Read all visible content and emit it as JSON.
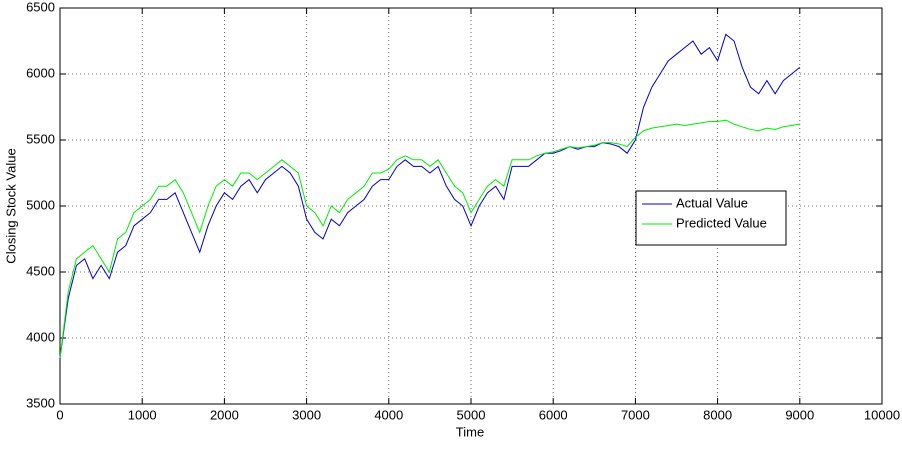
{
  "chart_data": {
    "type": "line",
    "xlabel": "Time",
    "ylabel": "Closing Stock Value",
    "x": [
      0,
      100,
      200,
      300,
      400,
      500,
      600,
      700,
      800,
      900,
      1000,
      1100,
      1200,
      1300,
      1400,
      1500,
      1600,
      1700,
      1800,
      1900,
      2000,
      2100,
      2200,
      2300,
      2400,
      2500,
      2600,
      2700,
      2800,
      2900,
      3000,
      3100,
      3200,
      3300,
      3400,
      3500,
      3600,
      3700,
      3800,
      3900,
      4000,
      4100,
      4200,
      4300,
      4400,
      4500,
      4600,
      4700,
      4800,
      4900,
      5000,
      5100,
      5200,
      5300,
      5400,
      5500,
      5600,
      5700,
      5800,
      5900,
      6000,
      6100,
      6200,
      6300,
      6400,
      6500,
      6600,
      6700,
      6800,
      6900,
      7000,
      7100,
      7200,
      7300,
      7400,
      7500,
      7600,
      7700,
      7800,
      7900,
      8000,
      8100,
      8200,
      8300,
      8400,
      8500,
      8600,
      8700,
      8800,
      8900,
      9000
    ],
    "series": [
      {
        "name": "Actual Value",
        "color": "#0000cc",
        "values": [
          3850,
          4300,
          4550,
          4600,
          4450,
          4550,
          4450,
          4650,
          4700,
          4850,
          4900,
          4950,
          5050,
          5050,
          5100,
          4950,
          4800,
          4650,
          4850,
          5000,
          5100,
          5050,
          5150,
          5200,
          5100,
          5200,
          5250,
          5300,
          5250,
          5150,
          4900,
          4800,
          4750,
          4900,
          4850,
          4950,
          5000,
          5050,
          5150,
          5200,
          5200,
          5300,
          5350,
          5300,
          5300,
          5250,
          5300,
          5150,
          5050,
          5000,
          4850,
          5000,
          5100,
          5150,
          5050,
          5300,
          5300,
          5300,
          5350,
          5400,
          5400,
          5420,
          5450,
          5430,
          5450,
          5450,
          5480,
          5470,
          5450,
          5400,
          5500,
          5750,
          5900,
          6000,
          6100,
          6150,
          6200,
          6250,
          6150,
          6200,
          6100,
          6300,
          6250,
          6050,
          5900,
          5850,
          5950,
          5850,
          5950,
          6000,
          6050
        ]
      },
      {
        "name": "Predicted Value",
        "color": "#00ee00",
        "values": [
          3850,
          4350,
          4600,
          4650,
          4700,
          4600,
          4500,
          4750,
          4800,
          4950,
          5000,
          5050,
          5150,
          5150,
          5200,
          5100,
          4950,
          4800,
          5000,
          5150,
          5200,
          5150,
          5250,
          5250,
          5200,
          5250,
          5300,
          5350,
          5300,
          5250,
          5000,
          4950,
          4850,
          5000,
          4950,
          5050,
          5100,
          5150,
          5250,
          5250,
          5280,
          5350,
          5380,
          5350,
          5350,
          5300,
          5350,
          5250,
          5150,
          5100,
          4950,
          5050,
          5150,
          5200,
          5150,
          5350,
          5350,
          5350,
          5380,
          5400,
          5410,
          5430,
          5450,
          5440,
          5450,
          5460,
          5480,
          5480,
          5470,
          5450,
          5520,
          5570,
          5590,
          5600,
          5610,
          5620,
          5610,
          5620,
          5630,
          5640,
          5640,
          5650,
          5620,
          5600,
          5580,
          5570,
          5590,
          5580,
          5600,
          5610,
          5620
        ]
      }
    ],
    "xlim": [
      0,
      10000
    ],
    "xticks": [
      0,
      1000,
      2000,
      3000,
      4000,
      5000,
      6000,
      7000,
      8000,
      9000,
      10000
    ],
    "ylim": [
      3500,
      6500
    ],
    "yticks": [
      3500,
      4000,
      4500,
      5000,
      5500,
      6000,
      6500
    ],
    "grid": true,
    "legend": "right"
  }
}
